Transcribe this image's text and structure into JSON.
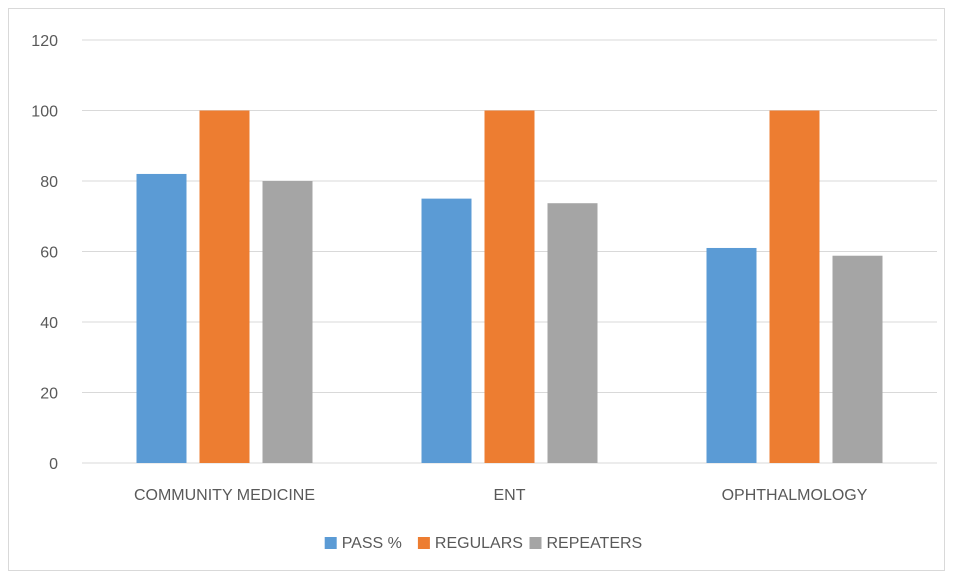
{
  "chart_data": {
    "type": "bar",
    "categories": [
      "COMMUNITY MEDICINE",
      "ENT",
      "OPHTHALMOLOGY"
    ],
    "series": [
      {
        "name": "PASS %",
        "color": "#5b9bd5",
        "values": [
          82,
          75,
          61
        ]
      },
      {
        "name": "REGULARS",
        "color": "#ed7d31",
        "values": [
          100,
          100,
          100
        ]
      },
      {
        "name": "REPEATERS",
        "color": "#a5a5a5",
        "values": [
          80,
          73.7,
          58.8
        ]
      }
    ],
    "ylim": [
      0,
      120
    ],
    "yticks": [
      "0",
      "20",
      "40",
      "60",
      "80",
      "100",
      "120"
    ],
    "grid": true,
    "legend_position": "bottom",
    "title": "",
    "xlabel": "",
    "ylabel": ""
  }
}
